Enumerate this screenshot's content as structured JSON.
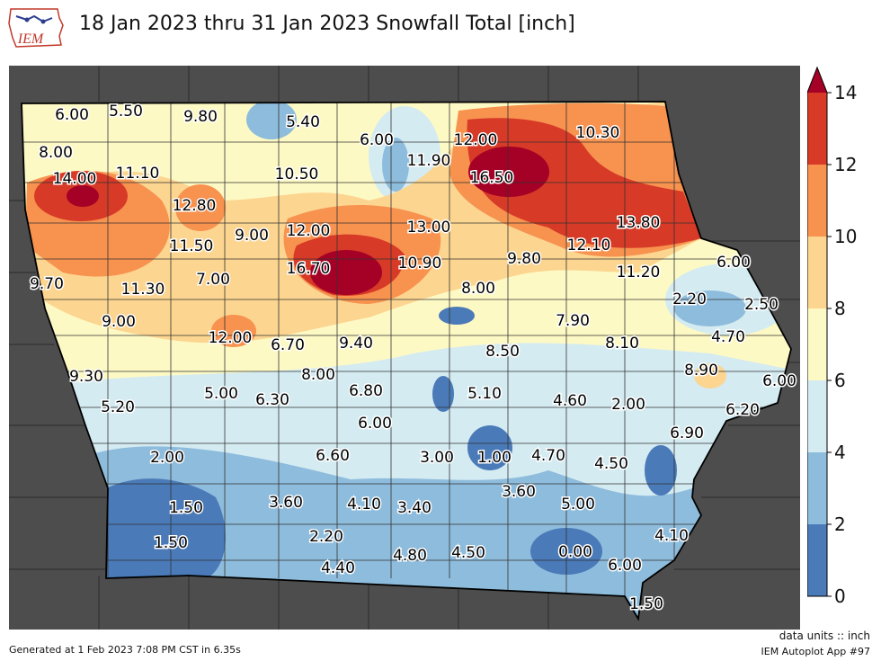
{
  "header": {
    "title": "18 Jan 2023 thru 31 Jan 2023 Snowfall Total [inch]",
    "logo_text": "IEM"
  },
  "colorbar": {
    "ticks": [
      "0",
      "2",
      "4",
      "6",
      "8",
      "10",
      "12",
      "14"
    ],
    "colors": [
      "#4a7ab8",
      "#8ebcdc",
      "#d4ebf2",
      "#fdf9c4",
      "#fcd590",
      "#f7924f",
      "#d73a27",
      "#a50026"
    ]
  },
  "labels": [
    {
      "text": "6.00"
    },
    {
      "text": "5.50"
    },
    {
      "text": "9.80"
    },
    {
      "text": "5.40"
    },
    {
      "text": "6.00"
    },
    {
      "text": "12.00"
    },
    {
      "text": "10.30"
    },
    {
      "text": "8.00"
    },
    {
      "text": "11.90"
    },
    {
      "text": "14.00"
    },
    {
      "text": "11.10"
    },
    {
      "text": "10.50"
    },
    {
      "text": "16.50"
    },
    {
      "text": "12.80"
    },
    {
      "text": "13.80"
    },
    {
      "text": "11.50"
    },
    {
      "text": "9.00"
    },
    {
      "text": "12.00"
    },
    {
      "text": "13.00"
    },
    {
      "text": "12.10"
    },
    {
      "text": "16.70"
    },
    {
      "text": "10.90"
    },
    {
      "text": "9.80"
    },
    {
      "text": "11.20"
    },
    {
      "text": "6.00"
    },
    {
      "text": "9.70"
    },
    {
      "text": "7.00"
    },
    {
      "text": "11.30"
    },
    {
      "text": "8.00"
    },
    {
      "text": "2.20"
    },
    {
      "text": "2.50"
    },
    {
      "text": "9.00"
    },
    {
      "text": "7.90"
    },
    {
      "text": "12.00"
    },
    {
      "text": "6.70"
    },
    {
      "text": "9.40"
    },
    {
      "text": "8.50"
    },
    {
      "text": "8.10"
    },
    {
      "text": "4.70"
    },
    {
      "text": "9.30"
    },
    {
      "text": "8.00"
    },
    {
      "text": "8.90"
    },
    {
      "text": "6.00"
    },
    {
      "text": "5.00"
    },
    {
      "text": "6.30"
    },
    {
      "text": "6.80"
    },
    {
      "text": "5.10"
    },
    {
      "text": "4.60"
    },
    {
      "text": "2.00"
    },
    {
      "text": "5.20"
    },
    {
      "text": "6.00"
    },
    {
      "text": "6.20"
    },
    {
      "text": "6.90"
    },
    {
      "text": "2.00"
    },
    {
      "text": "6.60"
    },
    {
      "text": "3.00"
    },
    {
      "text": "1.00"
    },
    {
      "text": "4.70"
    },
    {
      "text": "4.50"
    },
    {
      "text": "3.60"
    },
    {
      "text": "1.50"
    },
    {
      "text": "3.60"
    },
    {
      "text": "4.10"
    },
    {
      "text": "3.40"
    },
    {
      "text": "5.00"
    },
    {
      "text": "2.20"
    },
    {
      "text": "4.10"
    },
    {
      "text": "1.50"
    },
    {
      "text": "4.80"
    },
    {
      "text": "4.50"
    },
    {
      "text": "0.00"
    },
    {
      "text": "4.40"
    },
    {
      "text": "6.00"
    },
    {
      "text": "1.50"
    }
  ],
  "footer": {
    "generated": "Generated at 1 Feb 2023 7:08 PM CST in 6.35s",
    "units": "data units :: inch",
    "app": "IEM Autoplot App #97"
  }
}
